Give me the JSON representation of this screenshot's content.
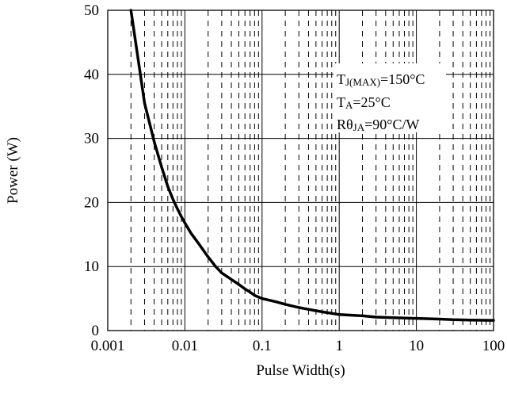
{
  "chart_data": {
    "type": "line",
    "title": "",
    "xlabel": "Pulse Width(s)",
    "ylabel": "Power (W)",
    "x_scale": "log",
    "xlim": [
      0.001,
      100
    ],
    "ylim": [
      0,
      50
    ],
    "x_ticks": [
      0.001,
      0.01,
      0.1,
      1,
      10,
      100
    ],
    "x_tick_labels": [
      "0.001",
      "0.01",
      "0.1",
      "1",
      "10",
      "100"
    ],
    "y_ticks": [
      0,
      10,
      20,
      30,
      40,
      50
    ],
    "y_tick_labels": [
      "0",
      "10",
      "20",
      "30",
      "40",
      "50"
    ],
    "grid": true,
    "minor_grid": "dashed",
    "annotations": [
      {
        "base": "T",
        "sub": "J(MAX)",
        "rest": "=150°C"
      },
      {
        "base": "T",
        "sub": "A",
        "rest": "=25°C"
      },
      {
        "base": "Rθ",
        "sub": "JA",
        "rest": "=90°C/W"
      }
    ],
    "series": [
      {
        "color": "#000000",
        "x": [
          0.002,
          0.0025,
          0.003,
          0.004,
          0.005,
          0.006,
          0.007,
          0.008,
          0.009,
          0.01,
          0.012,
          0.015,
          0.02,
          0.025,
          0.03,
          0.04,
          0.05,
          0.06,
          0.07,
          0.08,
          0.1,
          0.15,
          0.2,
          0.3,
          0.5,
          0.7,
          1,
          2,
          3,
          5,
          10,
          20,
          30,
          50,
          100
        ],
        "y": [
          50,
          42,
          35.5,
          29.5,
          25.5,
          22.5,
          20.5,
          19,
          17.8,
          16.8,
          15.2,
          13.6,
          11.5,
          10,
          9,
          8,
          7.2,
          6.5,
          6,
          5.5,
          5,
          4.5,
          4.1,
          3.6,
          3.1,
          2.8,
          2.5,
          2.3,
          2.1,
          2.0,
          1.9,
          1.8,
          1.7,
          1.65,
          1.6
        ]
      }
    ]
  }
}
